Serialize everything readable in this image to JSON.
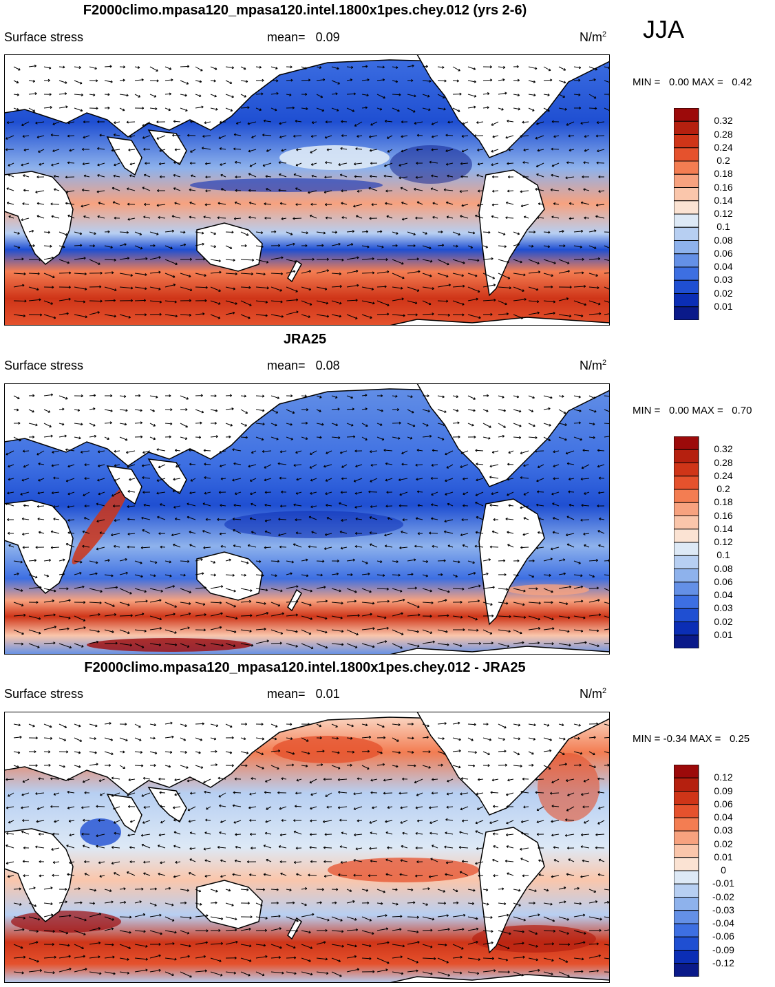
{
  "season": "JJA",
  "panels": [
    {
      "title": "F2000climo.mpasa120_mpasa120.intel.1800x1pes.chey.012 (yrs 2-6)",
      "variable": "Surface stress",
      "mean_label": "mean=",
      "mean_value": "0.09",
      "units": "N/m",
      "units_sup": "2",
      "min_label": "MIN =",
      "min_value": "0.00",
      "max_label": "MAX =",
      "max_value": "0.42",
      "colorbar_ticks": [
        "0.32",
        "0.28",
        "0.24",
        "0.2",
        "0.18",
        "0.16",
        "0.14",
        "0.12",
        "0.1",
        "0.08",
        "0.06",
        "0.04",
        "0.03",
        "0.02",
        "0.01"
      ]
    },
    {
      "title": "JRA25",
      "variable": "Surface stress",
      "mean_label": "mean=",
      "mean_value": "0.08",
      "units": "N/m",
      "units_sup": "2",
      "min_label": "MIN =",
      "min_value": "0.00",
      "max_label": "MAX =",
      "max_value": "0.70",
      "colorbar_ticks": [
        "0.32",
        "0.28",
        "0.24",
        "0.2",
        "0.18",
        "0.16",
        "0.14",
        "0.12",
        "0.1",
        "0.08",
        "0.06",
        "0.04",
        "0.03",
        "0.02",
        "0.01"
      ]
    },
    {
      "title": "F2000climo.mpasa120_mpasa120.intel.1800x1pes.chey.012 - JRA25",
      "variable": "Surface stress",
      "mean_label": "mean=",
      "mean_value": "0.01",
      "units": "N/m",
      "units_sup": "2",
      "min_label": "MIN =",
      "min_value": "-0.34",
      "max_label": "MAX =",
      "max_value": "0.25",
      "colorbar_ticks": [
        "0.12",
        "0.09",
        "0.06",
        "0.04",
        "0.03",
        "0.02",
        "0.01",
        "0",
        "-0.01",
        "-0.02",
        "-0.03",
        "-0.04",
        "-0.06",
        "-0.09",
        "-0.12"
      ]
    }
  ],
  "colorbar_colors": [
    "#9c0a0a",
    "#b5200f",
    "#cf3518",
    "#e5522d",
    "#f37d52",
    "#f7a27f",
    "#fac6ab",
    "#fbe3d3",
    "#dde9f6",
    "#b7cff2",
    "#8eb2ec",
    "#6490e6",
    "#3d6fe2",
    "#1f4fd2",
    "#0b2eb5",
    "#0a1a8a"
  ],
  "colors": {
    "land": "#ffffff",
    "coast": "#000000",
    "ocean_blue": "#3d6fe2",
    "ocean_red": "#e5522d"
  }
}
